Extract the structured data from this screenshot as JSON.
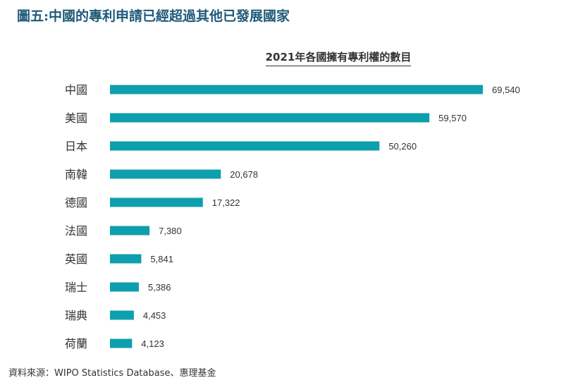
{
  "figure_title": "圖五:中國的專利申請已經超過其他已發展國家",
  "source": "資料來源：WIPO Statistics Database、惠理基金",
  "colors": {
    "bar": "#0d9fad",
    "label": "#333333",
    "title": "#1f5a7a"
  },
  "chart_data": {
    "type": "bar",
    "orientation": "horizontal",
    "title": "2021年各國擁有專利權的數目",
    "categories": [
      "中國",
      "美國",
      "日本",
      "南韓",
      "德國",
      "法國",
      "英國",
      "瑞士",
      "瑞典",
      "荷蘭"
    ],
    "values": [
      69540,
      59570,
      50260,
      20678,
      17322,
      7380,
      5841,
      5386,
      4453,
      4123
    ],
    "value_labels": [
      "69,540",
      "59,570",
      "50,260",
      "20,678",
      "17,322",
      "7,380",
      "5,841",
      "5,386",
      "4,453",
      "4,123"
    ],
    "xlabel": "",
    "ylabel": "",
    "grid": false,
    "legend": "none"
  }
}
